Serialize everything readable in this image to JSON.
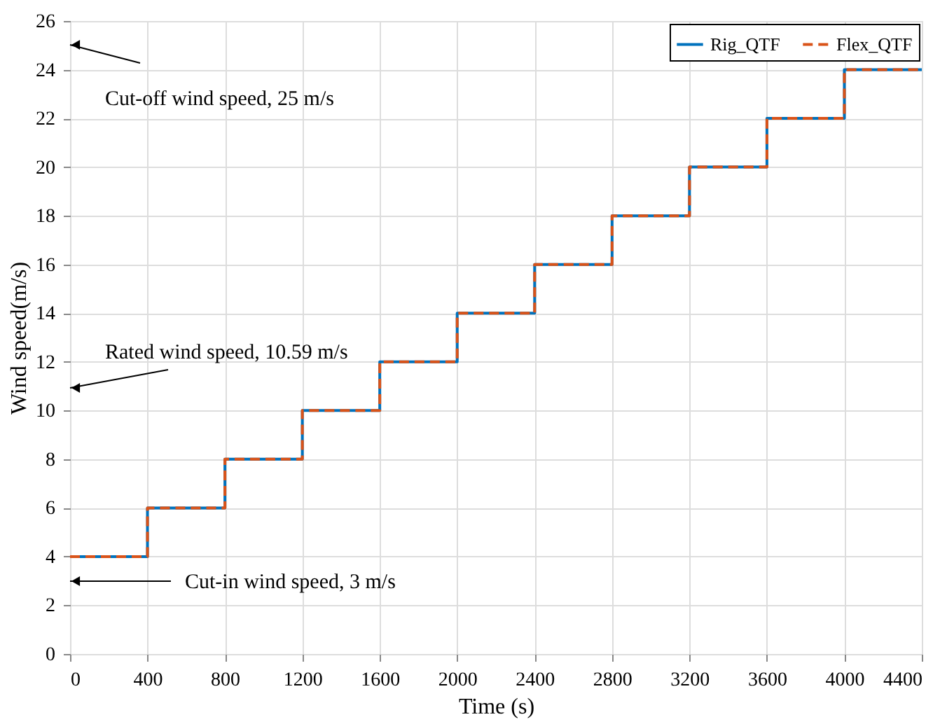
{
  "chart_data": {
    "type": "step",
    "xlabel": "Time (s)",
    "ylabel": "Wind speed(m/s)",
    "x": [
      0,
      400,
      800,
      1200,
      1600,
      2000,
      2400,
      2800,
      3200,
      3600,
      4000,
      4400
    ],
    "series": [
      {
        "name": "Rig_QTF",
        "color": "#0072bd",
        "line_style": "solid",
        "values": [
          4,
          6,
          8,
          10,
          12,
          14,
          16,
          18,
          20,
          22,
          24,
          24
        ]
      },
      {
        "name": "Flex_QTF",
        "color": "#d95319",
        "line_style": "dashed",
        "values": [
          4,
          6,
          8,
          10,
          12,
          14,
          16,
          18,
          20,
          22,
          24,
          24
        ]
      }
    ],
    "xlim": [
      0,
      4400
    ],
    "xticks": [
      0,
      400,
      800,
      1200,
      1600,
      2000,
      2400,
      2800,
      3200,
      3600,
      4000,
      4400
    ],
    "ylim": [
      0,
      26
    ],
    "yticks": [
      0,
      2,
      4,
      6,
      8,
      10,
      12,
      14,
      16,
      18,
      20,
      22,
      24,
      26
    ],
    "annotations": [
      "Cut-off wind speed, 25 m/s",
      "Rated wind speed, 10.59 m/s",
      "Cut-in wind speed, 3 m/s"
    ],
    "grid": true,
    "legend": "top right"
  }
}
